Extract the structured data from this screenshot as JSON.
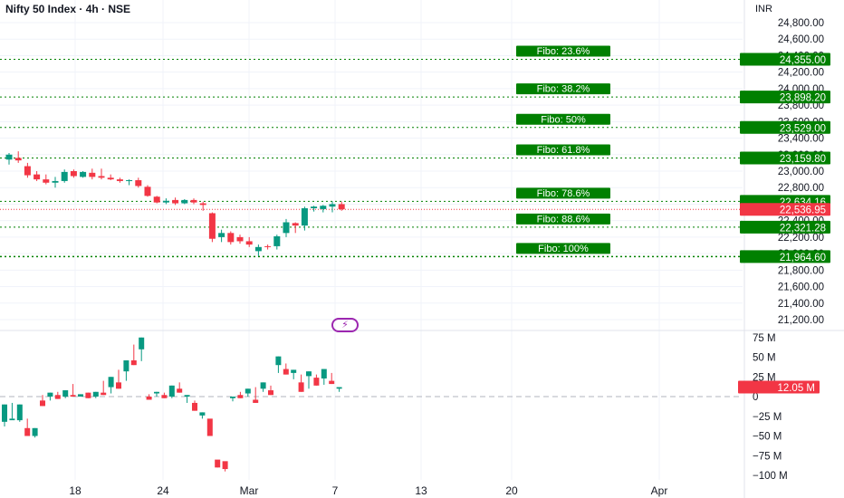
{
  "header": {
    "title": "Nifty 50 Index · 4h · NSE",
    "unit": "INR"
  },
  "icons": {
    "badge": "lightning-icon"
  },
  "colors": {
    "up": "#089981",
    "down": "#f23645",
    "fibo": "#008000",
    "grid": "#f0f3fa",
    "axis_text": "#131722"
  },
  "chart_data": [
    {
      "type": "candlestick",
      "title": "",
      "ylabel": "INR",
      "ylim": [
        20980,
        24900
      ],
      "y_ticks": [
        "24,800.00",
        "24,600.00",
        "24,400.00",
        "24,200.00",
        "24,000.00",
        "23,800.00",
        "23,600.00",
        "23,400.00",
        "23,200.00",
        "23,000.00",
        "22,800.00",
        "22,600.00",
        "22,400.00",
        "22,200.00",
        "22,000.00",
        "21,800.00",
        "21,600.00",
        "21,400.00",
        "21,200.00"
      ],
      "x_ticks": [
        "18",
        "24",
        "Mar",
        "7",
        "13",
        "20",
        "Apr"
      ],
      "candles": [
        [
          23140,
          23220,
          23080,
          23200
        ],
        [
          23160,
          23240,
          23100,
          23130
        ],
        [
          23060,
          23100,
          22920,
          22950
        ],
        [
          22960,
          23000,
          22880,
          22900
        ],
        [
          22900,
          22960,
          22840,
          22860
        ],
        [
          22860,
          22930,
          22800,
          22880
        ],
        [
          22880,
          23020,
          22860,
          22990
        ],
        [
          23000,
          23020,
          22920,
          22940
        ],
        [
          22930,
          23000,
          22920,
          22990
        ],
        [
          22980,
          23030,
          22900,
          22930
        ],
        [
          22940,
          23030,
          22900,
          22920
        ],
        [
          22920,
          22960,
          22890,
          22900
        ],
        [
          22900,
          22920,
          22860,
          22880
        ],
        [
          22880,
          22900,
          22830,
          22890
        ],
        [
          22890,
          22920,
          22800,
          22820
        ],
        [
          22810,
          22830,
          22690,
          22700
        ],
        [
          22690,
          22700,
          22610,
          22620
        ],
        [
          22620,
          22670,
          22600,
          22640
        ],
        [
          22650,
          22680,
          22590,
          22610
        ],
        [
          22610,
          22660,
          22600,
          22650
        ],
        [
          22650,
          22670,
          22600,
          22620
        ],
        [
          22610,
          22630,
          22520,
          22590
        ],
        [
          22490,
          22500,
          22140,
          22180
        ],
        [
          22200,
          22290,
          22140,
          22250
        ],
        [
          22250,
          22270,
          22110,
          22140
        ],
        [
          22200,
          22230,
          22120,
          22150
        ],
        [
          22150,
          22200,
          22080,
          22110
        ],
        [
          22030,
          22110,
          21970,
          22080
        ],
        [
          22090,
          22110,
          22050,
          22080
        ],
        [
          22090,
          22230,
          22050,
          22210
        ],
        [
          22250,
          22420,
          22200,
          22380
        ],
        [
          22370,
          22380,
          22250,
          22340
        ],
        [
          22340,
          22570,
          22280,
          22550
        ],
        [
          22550,
          22580,
          22510,
          22570
        ],
        [
          22540,
          22590,
          22500,
          22580
        ],
        [
          22570,
          22634,
          22500,
          22600
        ],
        [
          22600,
          22630,
          22520,
          22537
        ]
      ],
      "fibo_levels": [
        {
          "label": "Fibo: 23.6%",
          "value": "24,355.00",
          "price": 24355
        },
        {
          "label": "Fibo: 38.2%",
          "value": "23,898.20",
          "price": 23898.2
        },
        {
          "label": "Fibo:  50%",
          "value": "23,529.00",
          "price": 23529
        },
        {
          "label": "Fibo: 61.8%",
          "value": "23,159.80",
          "price": 23159.8
        },
        {
          "label": "Fibo: 78.6%",
          "value": "22,634.16",
          "price": 22634.16
        },
        {
          "label": "Fibo: 88.6%",
          "value": "22,321.28",
          "price": 22321.28
        },
        {
          "label": "Fibo: 100%",
          "value": "21,964.60",
          "price": 21964.6
        }
      ],
      "last_price": {
        "value": "22,536.95",
        "price": 22536.95
      }
    },
    {
      "type": "bar",
      "title": "",
      "ylim": [
        -110,
        80
      ],
      "y_ticks": [
        "75 M",
        "50 M",
        "25 M",
        "0",
        "−25 M",
        "−50 M",
        "−75 M",
        "−100 M"
      ],
      "values": [
        [
          -32,
          -10,
          -38
        ],
        [
          -30,
          -8,
          -28
        ],
        [
          -30,
          -10,
          -32
        ],
        [
          -40,
          -28,
          -50
        ],
        [
          -50,
          -40,
          -52
        ],
        [
          -5,
          2,
          -12
        ],
        [
          0,
          5,
          -5
        ],
        [
          2,
          6,
          -3
        ],
        [
          0,
          8,
          -2
        ],
        [
          2,
          16,
          0
        ],
        [
          0,
          3,
          0
        ],
        [
          5,
          5,
          -2
        ],
        [
          0,
          6,
          -2
        ],
        [
          5,
          20,
          2
        ],
        [
          12,
          25,
          4
        ],
        [
          18,
          34,
          10
        ],
        [
          32,
          46,
          20
        ],
        [
          46,
          66,
          40
        ],
        [
          60,
          75,
          45
        ],
        [
          0,
          3,
          -4
        ],
        [
          4,
          6,
          0
        ],
        [
          2,
          5,
          -2
        ],
        [
          0,
          14,
          -2
        ],
        [
          10,
          18,
          5
        ],
        [
          0,
          2,
          -8
        ],
        [
          -8,
          -5,
          -18
        ],
        [
          -24,
          -20,
          -28
        ],
        [
          -28,
          -34,
          -50
        ],
        [
          -80,
          -90,
          -88
        ],
        [
          -82,
          -95,
          -92
        ],
        [
          -2,
          0,
          -6
        ],
        [
          2,
          6,
          -2
        ],
        [
          4,
          10,
          0
        ],
        [
          -4,
          12,
          -8
        ],
        [
          10,
          18,
          6
        ],
        [
          8,
          14,
          2
        ],
        [
          40,
          51,
          30
        ],
        [
          35,
          42,
          28
        ],
        [
          30,
          34,
          22
        ],
        [
          18,
          28,
          6
        ],
        [
          26,
          32,
          10
        ],
        [
          24,
          28,
          14
        ],
        [
          23,
          35,
          15
        ],
        [
          20,
          30,
          16
        ],
        [
          10,
          12,
          6
        ]
      ],
      "last_value": {
        "label": "12.05 M",
        "value": 12.05
      }
    }
  ]
}
